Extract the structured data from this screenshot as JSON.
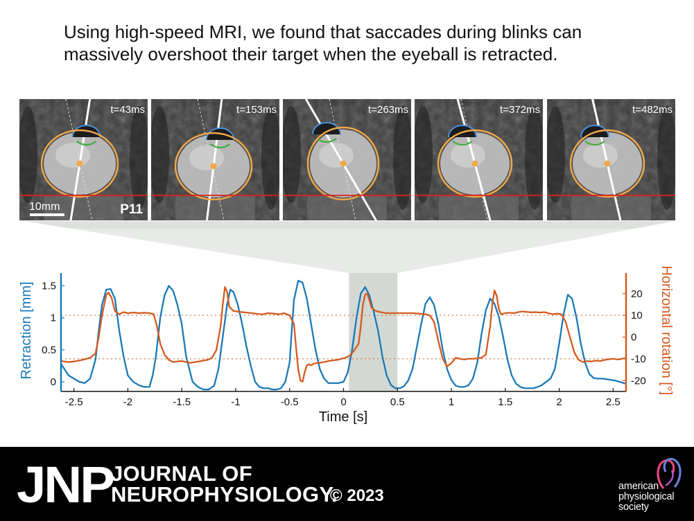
{
  "headline": {
    "line1": "Using high-speed MRI, we found that saccades during blinks can",
    "line2": "massively overshoot their target when the eyeball is retracted."
  },
  "frames": [
    {
      "time_label": "t=43ms",
      "gaze_angle_deg": 9
    },
    {
      "time_label": "t=153ms",
      "gaze_angle_deg": 7
    },
    {
      "time_label": "t=263ms",
      "gaze_angle_deg": -30
    },
    {
      "time_label": "t=372ms",
      "gaze_angle_deg": -15
    },
    {
      "time_label": "t=482ms",
      "gaze_angle_deg": -13
    }
  ],
  "scale_bar_label": "10mm",
  "participant_label": "P11",
  "colors": {
    "retraction": "#1a78b8",
    "rotation": "#d45a1e",
    "eyeball_outline": "#f0a848",
    "cornea_outline": "#4a8fe0",
    "lens_outline": "#3fae3a",
    "reference_line": "#e02020",
    "highlight_band": "#d3d8d3"
  },
  "chart_data": {
    "type": "line",
    "xlabel": "Time [s]",
    "ylabel_left": "Retraction [mm]",
    "ylabel_right": "Horizontal rotation [°]",
    "xlim": [
      -2.62,
      2.62
    ],
    "ylim_left": [
      -0.15,
      1.7
    ],
    "ylim_right": [
      -25,
      29.5
    ],
    "x_ticks": [
      -2.5,
      -2,
      -1.5,
      -1,
      -0.5,
      0,
      0.5,
      1,
      1.5,
      2,
      2.5
    ],
    "x_tick_labels": [
      "-2.5",
      "-2",
      "-1.5",
      "-1",
      "-0.5",
      "0",
      "0.5",
      "1",
      "1.5",
      "2",
      "2.5"
    ],
    "y_left_ticks": [
      0,
      0.5,
      1,
      1.5
    ],
    "y_left_tick_labels": [
      "0",
      "0.5",
      "1",
      "1.5"
    ],
    "y_right_ticks": [
      -20,
      -10,
      0,
      10,
      20
    ],
    "y_right_tick_labels": [
      "-20",
      "-10",
      "0",
      "10",
      "20"
    ],
    "reference_lines_right": [
      10,
      -10
    ],
    "highlight_interval": [
      0.05,
      0.5
    ],
    "series": [
      {
        "name": "Retraction [mm]",
        "axis": "left",
        "x": [
          -2.62,
          -2.55,
          -2.45,
          -2.4,
          -2.35,
          -2.3,
          -2.27,
          -2.24,
          -2.2,
          -2.16,
          -2.12,
          -2.08,
          -2.04,
          -2.0,
          -1.95,
          -1.9,
          -1.85,
          -1.8,
          -1.77,
          -1.74,
          -1.7,
          -1.66,
          -1.62,
          -1.58,
          -1.54,
          -1.5,
          -1.46,
          -1.4,
          -1.35,
          -1.3,
          -1.25,
          -1.2,
          -1.16,
          -1.12,
          -1.08,
          -1.05,
          -1.02,
          -0.98,
          -0.94,
          -0.9,
          -0.86,
          -0.82,
          -0.78,
          -0.74,
          -0.7,
          -0.66,
          -0.62,
          -0.58,
          -0.54,
          -0.5,
          -0.48,
          -0.46,
          -0.42,
          -0.38,
          -0.34,
          -0.3,
          -0.26,
          -0.22,
          -0.18,
          -0.14,
          -0.1,
          -0.05,
          0.0,
          0.04,
          0.08,
          0.12,
          0.16,
          0.2,
          0.24,
          0.28,
          0.32,
          0.36,
          0.4,
          0.44,
          0.48,
          0.52,
          0.56,
          0.6,
          0.64,
          0.68,
          0.72,
          0.76,
          0.8,
          0.84,
          0.88,
          0.92,
          0.96,
          1.0,
          1.04,
          1.08,
          1.12,
          1.16,
          1.2,
          1.24,
          1.28,
          1.32,
          1.36,
          1.4,
          1.44,
          1.48,
          1.52,
          1.56,
          1.6,
          1.64,
          1.68,
          1.72,
          1.76,
          1.8,
          1.84,
          1.88,
          1.92,
          1.96,
          2.0,
          2.04,
          2.08,
          2.12,
          2.16,
          2.2,
          2.24,
          2.28,
          2.32,
          2.36,
          2.4,
          2.44,
          2.48,
          2.52,
          2.56,
          2.6,
          2.62
        ],
        "y": [
          0.28,
          0.1,
          0.0,
          -0.02,
          0.05,
          0.35,
          0.8,
          1.2,
          1.44,
          1.45,
          1.3,
          0.8,
          0.4,
          0.1,
          0.0,
          -0.05,
          -0.08,
          -0.08,
          0.1,
          0.4,
          1.0,
          1.35,
          1.5,
          1.42,
          1.2,
          0.9,
          0.4,
          0.0,
          -0.08,
          -0.12,
          -0.12,
          -0.06,
          0.2,
          0.7,
          1.2,
          1.44,
          1.4,
          1.2,
          0.9,
          0.55,
          0.25,
          0.0,
          -0.08,
          -0.1,
          -0.1,
          -0.12,
          -0.12,
          -0.1,
          0.0,
          0.3,
          0.8,
          1.28,
          1.58,
          1.55,
          1.3,
          0.9,
          0.5,
          0.2,
          0.05,
          -0.02,
          -0.02,
          -0.02,
          0.0,
          0.15,
          0.5,
          1.0,
          1.38,
          1.48,
          1.35,
          1.1,
          0.8,
          0.4,
          0.1,
          -0.05,
          -0.1,
          -0.1,
          -0.07,
          0.02,
          0.2,
          0.55,
          0.9,
          1.22,
          1.32,
          1.2,
          0.9,
          0.5,
          0.2,
          0.03,
          -0.06,
          -0.08,
          -0.08,
          -0.05,
          0.05,
          0.3,
          0.75,
          1.12,
          1.3,
          1.22,
          1.02,
          0.7,
          0.35,
          0.1,
          -0.03,
          -0.08,
          -0.1,
          -0.1,
          -0.1,
          -0.08,
          -0.05,
          0.0,
          0.05,
          0.2,
          0.6,
          1.05,
          1.36,
          1.3,
          1.0,
          0.6,
          0.3,
          0.12,
          0.06,
          0.05,
          0.05,
          0.04,
          0.03,
          0.02,
          0.0,
          -0.02,
          -0.03
        ]
      },
      {
        "name": "Horizontal rotation [°]",
        "axis": "right",
        "x": [
          -2.62,
          -2.55,
          -2.5,
          -2.45,
          -2.4,
          -2.35,
          -2.3,
          -2.27,
          -2.24,
          -2.2,
          -2.18,
          -2.15,
          -2.12,
          -2.08,
          -2.04,
          -2.0,
          -1.95,
          -1.9,
          -1.85,
          -1.8,
          -1.76,
          -1.73,
          -1.7,
          -1.66,
          -1.62,
          -1.58,
          -1.54,
          -1.5,
          -1.46,
          -1.42,
          -1.38,
          -1.34,
          -1.3,
          -1.26,
          -1.22,
          -1.18,
          -1.14,
          -1.12,
          -1.1,
          -1.08,
          -1.06,
          -1.02,
          -0.98,
          -0.94,
          -0.9,
          -0.85,
          -0.8,
          -0.75,
          -0.7,
          -0.65,
          -0.6,
          -0.55,
          -0.5,
          -0.46,
          -0.44,
          -0.42,
          -0.4,
          -0.38,
          -0.36,
          -0.34,
          -0.32,
          -0.3,
          -0.28,
          -0.26,
          -0.22,
          -0.18,
          -0.14,
          -0.1,
          -0.06,
          -0.02,
          0.02,
          0.06,
          0.1,
          0.14,
          0.16,
          0.18,
          0.2,
          0.22,
          0.24,
          0.26,
          0.3,
          0.34,
          0.4,
          0.46,
          0.52,
          0.58,
          0.64,
          0.7,
          0.76,
          0.8,
          0.84,
          0.88,
          0.92,
          0.96,
          1.0,
          1.04,
          1.08,
          1.12,
          1.16,
          1.2,
          1.24,
          1.28,
          1.32,
          1.36,
          1.38,
          1.4,
          1.42,
          1.44,
          1.46,
          1.5,
          1.54,
          1.58,
          1.62,
          1.66,
          1.7,
          1.74,
          1.78,
          1.82,
          1.86,
          1.9,
          1.94,
          1.98,
          2.02,
          2.06,
          2.1,
          2.14,
          2.18,
          2.22,
          2.26,
          2.3,
          2.34,
          2.38,
          2.42,
          2.46,
          2.5,
          2.55,
          2.6,
          2.62
        ],
        "y": [
          -11,
          -11.5,
          -11.2,
          -10.8,
          -10.2,
          -9.5,
          -7.5,
          0.0,
          10.0,
          19.5,
          20.5,
          18.0,
          12.0,
          10.5,
          11.5,
          11.0,
          11.3,
          11.0,
          11.2,
          11.0,
          10.5,
          5.0,
          -3.0,
          -8.0,
          -10.5,
          -11.5,
          -11.2,
          -11.0,
          -11.5,
          -11.8,
          -11.5,
          -11.2,
          -10.8,
          -10.5,
          -9.5,
          -6.0,
          5.0,
          15.0,
          23.0,
          21.0,
          14.0,
          12.0,
          11.7,
          11.5,
          11.3,
          11.0,
          10.7,
          10.5,
          11.0,
          10.8,
          10.5,
          11.0,
          10.0,
          6.0,
          -5.0,
          -15.0,
          -20.0,
          -20.5,
          -16.0,
          -13.0,
          -12.5,
          -13.0,
          -12.3,
          -12.0,
          -11.8,
          -11.5,
          -11.0,
          -10.7,
          -10.5,
          -10.0,
          -9.5,
          -8.5,
          -6.0,
          -3.0,
          5.0,
          15.0,
          19.5,
          20.0,
          17.0,
          13.5,
          12.0,
          11.5,
          11.0,
          11.0,
          11.0,
          11.0,
          11.0,
          10.8,
          10.5,
          10.0,
          7.0,
          -2.0,
          -10.0,
          -13.5,
          -12.0,
          -9.5,
          -10.0,
          -10.3,
          -10.0,
          -10.0,
          -9.8,
          -9.5,
          -8.0,
          5.0,
          15.0,
          21.5,
          19.0,
          13.0,
          10.5,
          11.0,
          11.2,
          11.0,
          11.5,
          11.8,
          11.6,
          11.4,
          11.5,
          11.3,
          11.5,
          11.0,
          10.5,
          10.8,
          10.5,
          7.0,
          0.0,
          -7.0,
          -10.5,
          -11.5,
          -11.0,
          -11.2,
          -10.8,
          -11.0,
          -10.5,
          -10.2,
          -10.0,
          -10.3,
          -9.8,
          -10.0
        ]
      }
    ]
  },
  "footer": {
    "jnp_logo": "JNP",
    "journal_name_line1": "JOURNAL OF",
    "journal_name_line2": "NEUROPHYSIOLOGY.",
    "copyright": "© 2023",
    "publisher_line1": "american",
    "publisher_line2": "physiological",
    "publisher_line3": "society"
  }
}
